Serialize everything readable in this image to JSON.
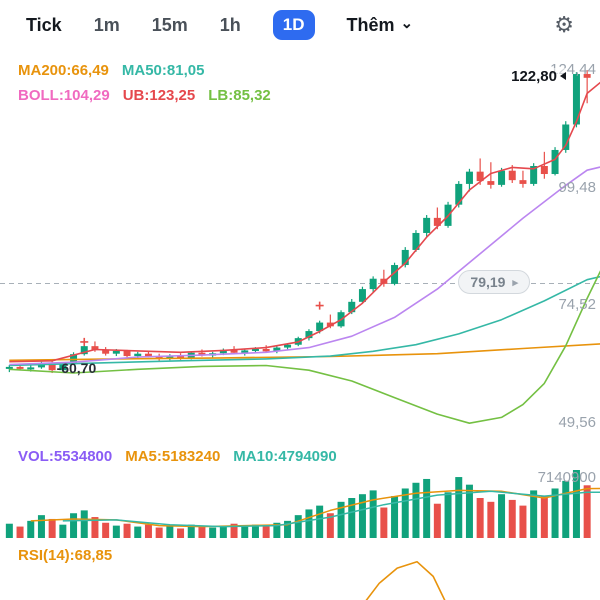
{
  "header": {
    "tabs": [
      {
        "label": "Tick"
      },
      {
        "label": "1m"
      },
      {
        "label": "15m"
      },
      {
        "label": "1h"
      },
      {
        "label": "1D",
        "active": true
      }
    ],
    "more_label": "Thêm",
    "active_tab_color": "#2e6bf0",
    "settings_icon": "gear"
  },
  "price_indicators": {
    "row1": [
      {
        "text": "MA200:66,49",
        "color": "#e8930c"
      },
      {
        "text": "MA50:81,05",
        "color": "#35b8a6"
      }
    ],
    "row2": [
      {
        "text": "BOLL:104,29",
        "color": "#f06ac0"
      },
      {
        "text": "UB:123,25",
        "color": "#e5484d"
      },
      {
        "text": "LB:85,32",
        "color": "#74c043"
      }
    ]
  },
  "volume_indicators": [
    {
      "text": "VOL:5534800",
      "color": "#8a5cf5"
    },
    {
      "text": "MA5:5183240",
      "color": "#e8930c"
    },
    {
      "text": "MA10:4794090",
      "color": "#35b8a6"
    }
  ],
  "rsi_indicator": {
    "text": "RSI(14):68,85",
    "color": "#e8930c"
  },
  "chart_data": {
    "type": "candlestick",
    "colors": {
      "up": "#10a27c",
      "down": "#e8504a",
      "dashed_line": "#a8b0b8"
    },
    "price_pane": {
      "ymin": 46,
      "ymax": 127,
      "dashed_level": 79.19,
      "candles": [
        [
          61.2,
          61.9,
          60.4,
          61.5
        ],
        [
          61.5,
          62.2,
          60.9,
          61.1
        ],
        [
          61.1,
          61.8,
          60.5,
          61.4
        ],
        [
          61.4,
          62.6,
          61.1,
          62.3
        ],
        [
          62.3,
          62.9,
          60.2,
          60.8
        ],
        [
          60.8,
          62.4,
          60.5,
          62.1
        ],
        [
          62.1,
          64.6,
          61.9,
          64.2
        ],
        [
          64.2,
          66.6,
          63.9,
          65.9
        ],
        [
          65.9,
          66.9,
          64.7,
          65.1
        ],
        [
          65.1,
          65.7,
          63.9,
          64.3
        ],
        [
          64.3,
          65.3,
          63.8,
          64.9
        ],
        [
          64.9,
          65.1,
          63.4,
          63.8
        ],
        [
          63.8,
          64.7,
          63.2,
          64.3
        ],
        [
          64.3,
          64.9,
          63.5,
          63.7
        ],
        [
          63.7,
          64.3,
          62.8,
          63.2
        ],
        [
          63.2,
          64.2,
          62.9,
          63.9
        ],
        [
          63.9,
          64.4,
          63.0,
          63.3
        ],
        [
          63.3,
          64.8,
          63.1,
          64.5
        ],
        [
          64.5,
          65.2,
          63.7,
          63.9
        ],
        [
          63.9,
          64.7,
          63.4,
          64.4
        ],
        [
          64.4,
          65.4,
          64.0,
          65.1
        ],
        [
          65.1,
          65.9,
          64.2,
          64.5
        ],
        [
          64.5,
          65.3,
          63.9,
          65.0
        ],
        [
          65.0,
          65.7,
          64.4,
          65.3
        ],
        [
          65.3,
          66.1,
          64.6,
          64.8
        ],
        [
          64.8,
          65.9,
          64.4,
          65.6
        ],
        [
          65.6,
          66.5,
          65.1,
          66.2
        ],
        [
          66.2,
          67.9,
          65.9,
          67.6
        ],
        [
          67.6,
          69.5,
          67.1,
          69.1
        ],
        [
          69.1,
          71.3,
          68.6,
          70.9
        ],
        [
          70.9,
          72.6,
          69.7,
          70.1
        ],
        [
          70.1,
          73.5,
          69.8,
          73.1
        ],
        [
          73.1,
          75.9,
          72.7,
          75.3
        ],
        [
          75.3,
          78.5,
          74.9,
          78.0
        ],
        [
          78.0,
          80.7,
          77.3,
          80.2
        ],
        [
          80.2,
          82.1,
          78.5,
          79.1
        ],
        [
          79.1,
          83.6,
          78.8,
          83.1
        ],
        [
          83.1,
          86.9,
          82.6,
          86.3
        ],
        [
          86.3,
          90.5,
          85.9,
          89.9
        ],
        [
          89.9,
          93.7,
          89.1,
          93.1
        ],
        [
          93.1,
          95.3,
          90.7,
          91.4
        ],
        [
          91.4,
          96.5,
          91.0,
          95.9
        ],
        [
          95.9,
          100.9,
          95.3,
          100.3
        ],
        [
          100.3,
          103.5,
          98.7,
          102.9
        ],
        [
          102.9,
          105.7,
          100.1,
          100.9
        ],
        [
          100.9,
          104.9,
          99.3,
          100.1
        ],
        [
          100.1,
          103.7,
          99.7,
          103.1
        ],
        [
          103.1,
          104.3,
          100.5,
          101.1
        ],
        [
          101.1,
          103.1,
          99.5,
          100.3
        ],
        [
          100.3,
          104.7,
          99.9,
          104.1
        ],
        [
          104.1,
          107.1,
          101.4,
          102.4
        ],
        [
          102.4,
          108.1,
          102.1,
          107.5
        ],
        [
          107.5,
          113.6,
          106.9,
          112.9
        ],
        [
          112.9,
          124.0,
          112.3,
          123.6
        ],
        [
          123.6,
          124.44,
          117.4,
          122.8
        ]
      ],
      "lines": [
        {
          "name": "MA200",
          "color": "#e8930c",
          "points": [
            [
              0,
              62.9
            ],
            [
              10,
              63.2
            ],
            [
              20,
              63.4
            ],
            [
              30,
              63.7
            ],
            [
              40,
              64.3
            ],
            [
              48,
              65.4
            ],
            [
              56,
              66.49
            ]
          ]
        },
        {
          "name": "MA50",
          "color": "#35b8a6",
          "points": [
            [
              0,
              61.8
            ],
            [
              8,
              62.3
            ],
            [
              16,
              62.8
            ],
            [
              24,
              63.2
            ],
            [
              30,
              63.8
            ],
            [
              34,
              64.8
            ],
            [
              38,
              66.2
            ],
            [
              42,
              68.5
            ],
            [
              46,
              71.5
            ],
            [
              50,
              75.5
            ],
            [
              54,
              80.0
            ],
            [
              56,
              81.05
            ]
          ]
        },
        {
          "name": "LB",
          "color": "#74c043",
          "points": [
            [
              0,
              61.0
            ],
            [
              6,
              60.2
            ],
            [
              12,
              61.0
            ],
            [
              18,
              61.6
            ],
            [
              24,
              61.8
            ],
            [
              28,
              60.8
            ],
            [
              32,
              58.5
            ],
            [
              36,
              55.0
            ],
            [
              40,
              51.5
            ],
            [
              43,
              49.56
            ],
            [
              46,
              50.8
            ],
            [
              48,
              53.5
            ],
            [
              50,
              58.0
            ],
            [
              52,
              66.0
            ],
            [
              54,
              76.0
            ],
            [
              56,
              85.32
            ]
          ]
        },
        {
          "name": "BOLL",
          "color": "#bb86f0",
          "points": [
            [
              0,
              62.0
            ],
            [
              6,
              62.5
            ],
            [
              12,
              63.6
            ],
            [
              18,
              64.0
            ],
            [
              24,
              64.6
            ],
            [
              28,
              65.6
            ],
            [
              32,
              68.0
            ],
            [
              36,
              72.0
            ],
            [
              40,
              78.0
            ],
            [
              44,
              85.5
            ],
            [
              48,
              93.0
            ],
            [
              52,
              100.0
            ],
            [
              54,
              103.2
            ],
            [
              56,
              104.29
            ]
          ]
        },
        {
          "name": "UB",
          "color": "#e5484d",
          "points": [
            [
              0,
              62.6
            ],
            [
              4,
              62.8
            ],
            [
              8,
              65.2
            ],
            [
              12,
              64.9
            ],
            [
              16,
              64.6
            ],
            [
              20,
              65.0
            ],
            [
              24,
              65.6
            ],
            [
              27,
              66.8
            ],
            [
              29,
              69.0
            ],
            [
              31,
              71.5
            ],
            [
              33,
              75.0
            ],
            [
              35,
              79.5
            ],
            [
              37,
              83.5
            ],
            [
              39,
              89.0
            ],
            [
              41,
              93.5
            ],
            [
              43,
              99.0
            ],
            [
              45,
              102.5
            ],
            [
              47,
              103.8
            ],
            [
              49,
              103.5
            ],
            [
              51,
              105.5
            ],
            [
              52,
              108.5
            ],
            [
              53,
              113.5
            ],
            [
              54,
              119.5
            ],
            [
              56,
              123.25
            ]
          ]
        }
      ],
      "markers": [
        {
          "i": 7,
          "price": 66.8
        },
        {
          "i": 29,
          "price": 74.5
        }
      ],
      "axis_labels": [
        {
          "text": "124,44",
          "price": 124.44
        },
        {
          "text": "99,48",
          "price": 99.48
        },
        {
          "text": "74,52",
          "price": 74.52
        },
        {
          "text": "49,56",
          "price": 49.56
        }
      ],
      "current_price": {
        "text": "122,80",
        "price": 122.8
      },
      "level_badge": {
        "text": "79,19",
        "arrow": "▸",
        "price": 79.19
      },
      "annotation": {
        "text": "-60,70",
        "i": 4.6,
        "price": 61.3
      }
    },
    "volume_pane": {
      "max": 7140900,
      "volumes": [
        1500000,
        1200000,
        1800000,
        2400000,
        2000000,
        1400000,
        2600000,
        2900000,
        2200000,
        1600000,
        1300000,
        1500000,
        1200000,
        1400000,
        1100000,
        1300000,
        1000000,
        1400000,
        1200000,
        1100000,
        1300000,
        1500000,
        1200000,
        1400000,
        1300000,
        1600000,
        1800000,
        2400000,
        3000000,
        3400000,
        2600000,
        3800000,
        4200000,
        4600000,
        5000000,
        3200000,
        4400000,
        5200000,
        5800000,
        6200000,
        3600000,
        4800000,
        6400000,
        5600000,
        4200000,
        3800000,
        4600000,
        4000000,
        3400000,
        5000000,
        4400000,
        5200000,
        6000000,
        7140900,
        5534800
      ],
      "ma_lines": [
        {
          "name": "MA5",
          "color": "#e8930c",
          "points": [
            [
              2,
              1800000
            ],
            [
              6,
              2000000
            ],
            [
              10,
              1900000
            ],
            [
              14,
              1300000
            ],
            [
              18,
              1200000
            ],
            [
              22,
              1300000
            ],
            [
              26,
              1400000
            ],
            [
              30,
              2900000
            ],
            [
              34,
              4000000
            ],
            [
              38,
              4700000
            ],
            [
              42,
              5000000
            ],
            [
              46,
              4900000
            ],
            [
              50,
              4200000
            ],
            [
              54,
              5183240
            ],
            [
              56,
              5200000
            ]
          ]
        },
        {
          "name": "MA10",
          "color": "#35b8a6",
          "points": [
            [
              5,
              1800000
            ],
            [
              10,
              1900000
            ],
            [
              15,
              1400000
            ],
            [
              20,
              1200000
            ],
            [
              25,
              1300000
            ],
            [
              30,
              2200000
            ],
            [
              35,
              3500000
            ],
            [
              40,
              4500000
            ],
            [
              45,
              4900000
            ],
            [
              50,
              4400000
            ],
            [
              54,
              4794090
            ],
            [
              56,
              4800000
            ]
          ]
        }
      ],
      "peak_label": {
        "text": "7140900"
      }
    },
    "rsi_pane": {
      "value": 68.85,
      "color": "#e8930c",
      "points": [
        [
          0.6,
          1.1
        ],
        [
          0.632,
          0.55
        ],
        [
          0.662,
          0.22
        ],
        [
          0.695,
          0.08
        ],
        [
          0.722,
          0.4
        ],
        [
          0.748,
          1.1
        ]
      ]
    }
  }
}
